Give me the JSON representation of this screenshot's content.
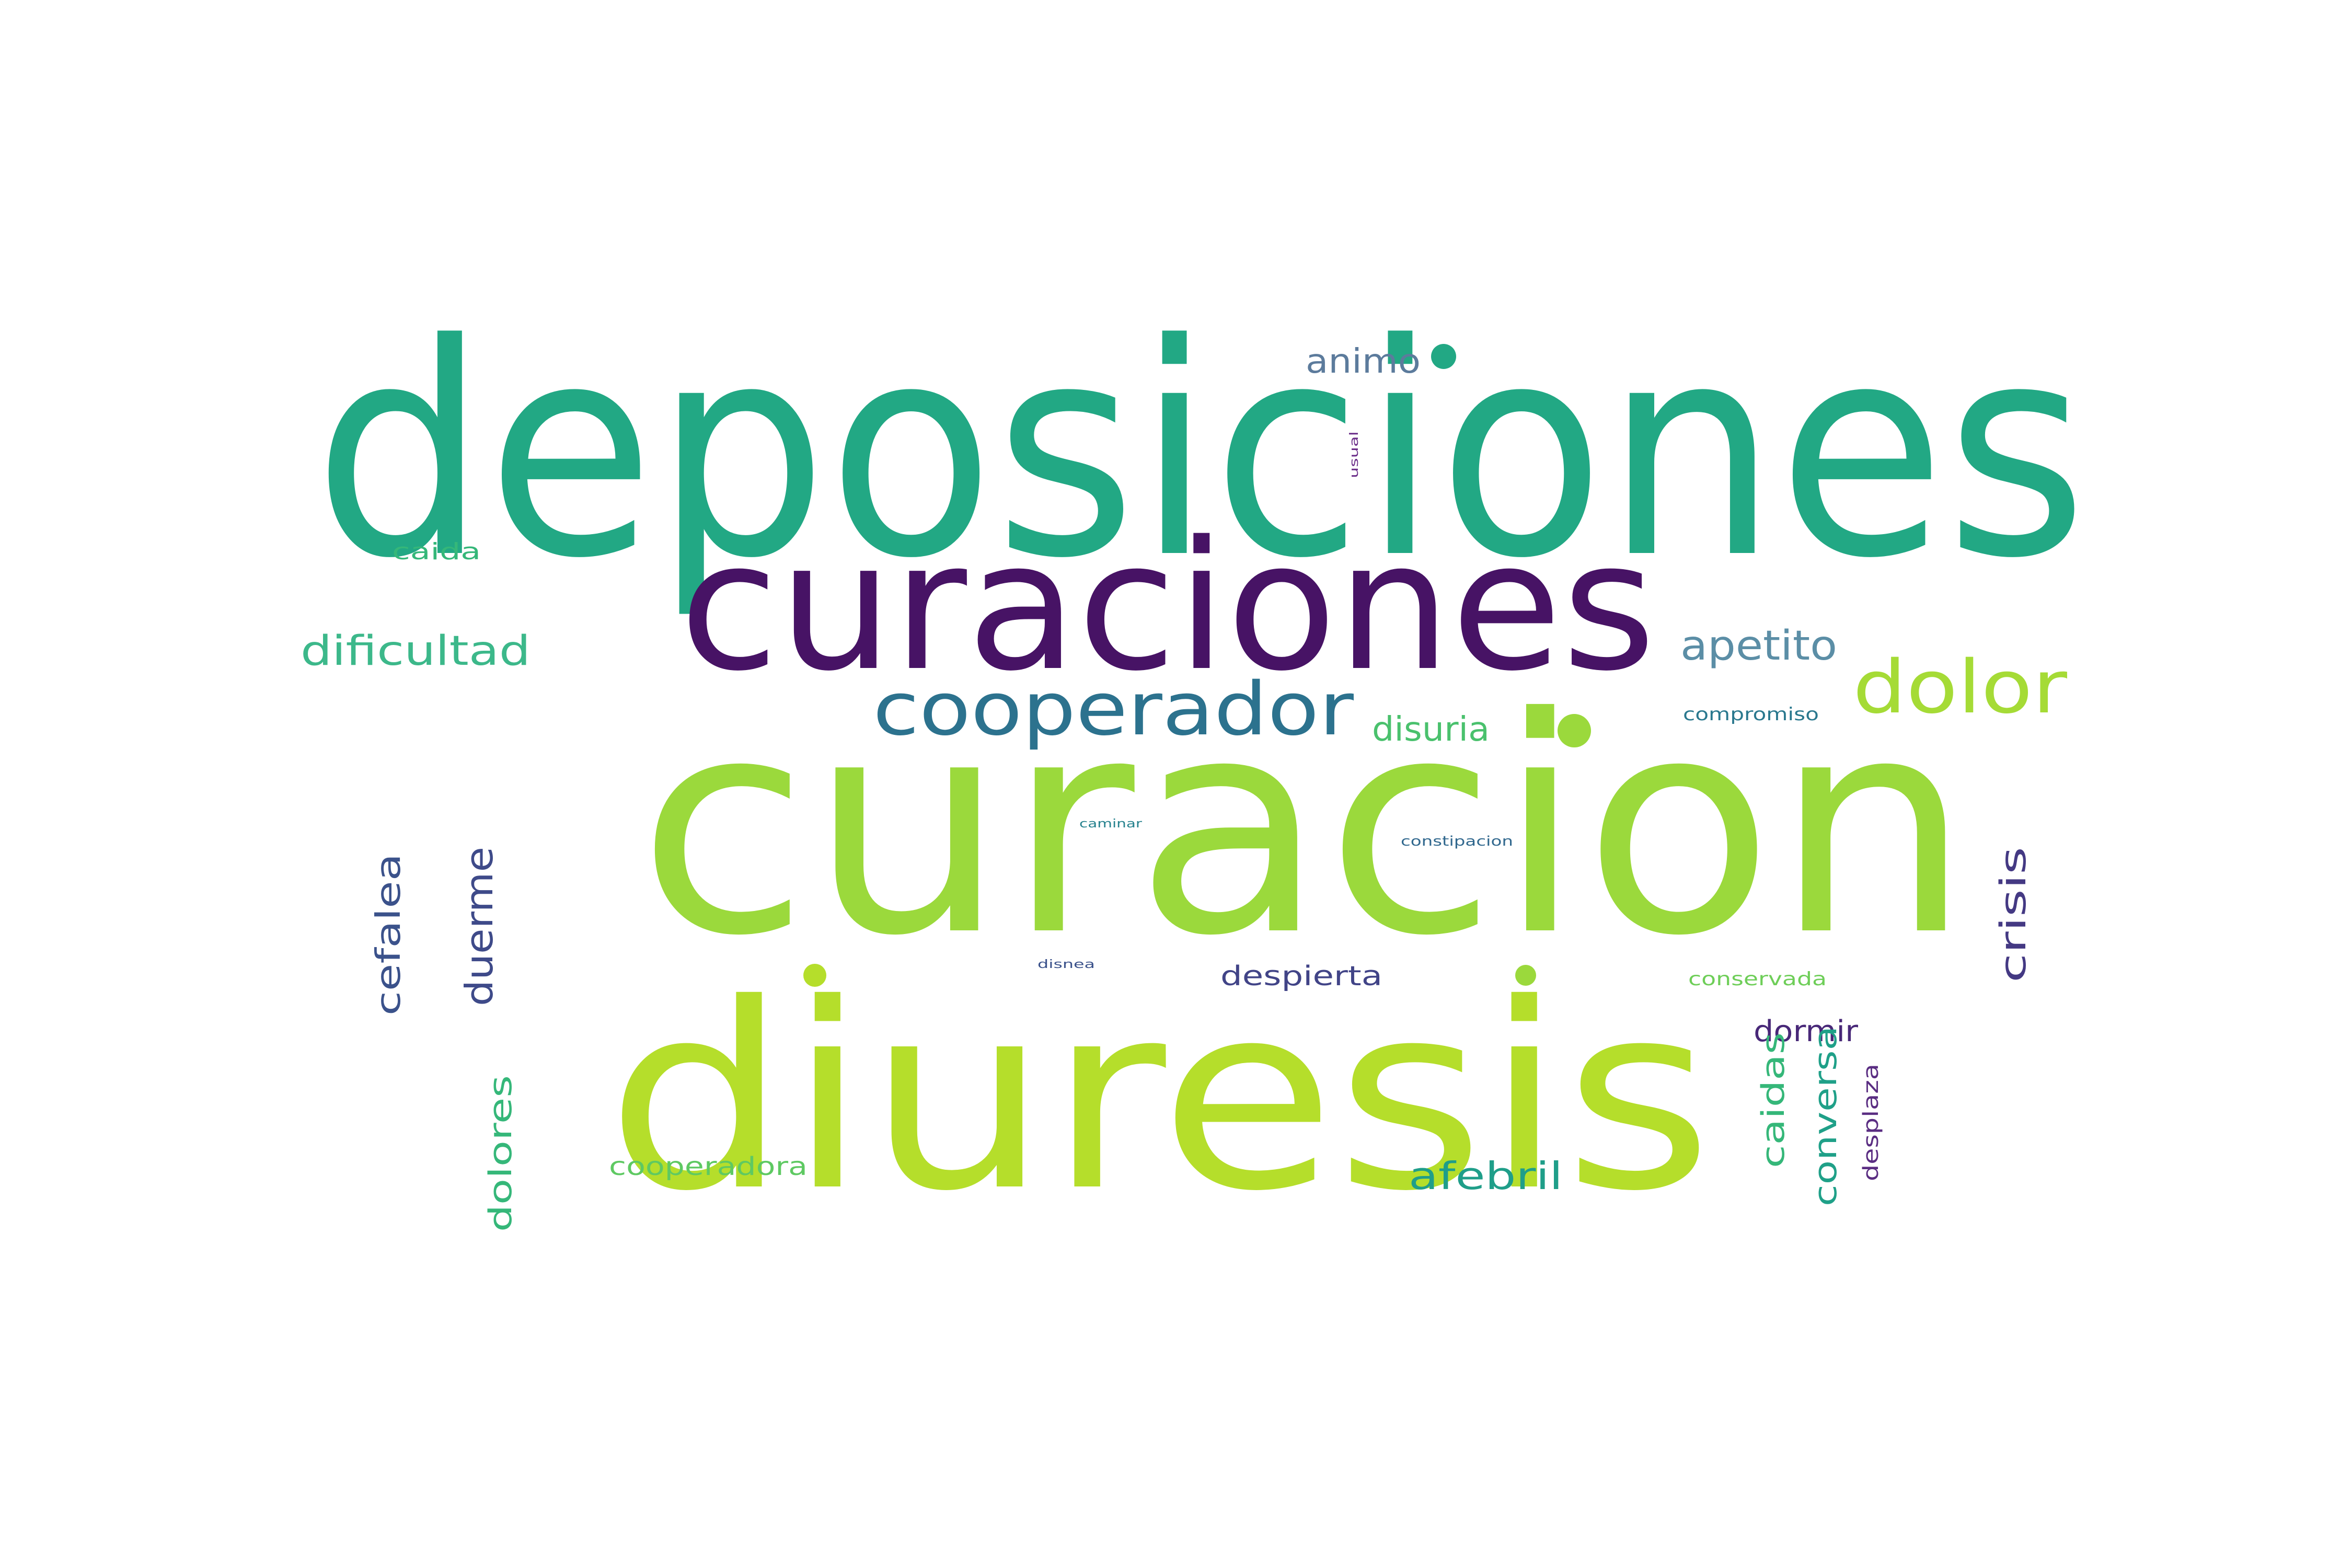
{
  "words": [
    {
      "text": "deposiciones",
      "color": "#22a884"
    },
    {
      "text": "curaciones",
      "color": "#471365"
    },
    {
      "text": "curacion",
      "color": "#9bd93c"
    },
    {
      "text": "diuresis",
      "color": "#b5de2b"
    },
    {
      "text": "cooperador",
      "color": "#2c728e"
    },
    {
      "text": "dolor",
      "color": "#a5db36"
    },
    {
      "text": "apetito",
      "color": "#5b8ea6"
    },
    {
      "text": "dificultad",
      "color": "#3cb88a"
    },
    {
      "text": "animo",
      "color": "#5c7b9c"
    },
    {
      "text": "caida",
      "color": "#35b779"
    },
    {
      "text": "disuria",
      "color": "#4ac16d"
    },
    {
      "text": "compromiso",
      "color": "#2a788e"
    },
    {
      "text": "cefalea",
      "color": "#3b528b"
    },
    {
      "text": "duerme",
      "color": "#3e4a89"
    },
    {
      "text": "crisis",
      "color": "#443983"
    },
    {
      "text": "despierta",
      "color": "#414487"
    },
    {
      "text": "dormir",
      "color": "#482878"
    },
    {
      "text": "conversa",
      "color": "#1fa088"
    },
    {
      "text": "caidas",
      "color": "#35b779"
    },
    {
      "text": "desplaza",
      "color": "#5a2d82"
    },
    {
      "text": "dolores",
      "color": "#35b779"
    },
    {
      "text": "cooperadora",
      "color": "#5ec962"
    },
    {
      "text": "afebril",
      "color": "#1f9e89"
    },
    {
      "text": "conservada",
      "color": "#6ece58"
    },
    {
      "text": "constipacion",
      "color": "#31688e"
    },
    {
      "text": "caminar",
      "color": "#26828e"
    },
    {
      "text": "disnea",
      "color": "#3b528b"
    },
    {
      "text": "usual",
      "color": "#6a2c88"
    }
  ],
  "dots": [
    {
      "color": "#22a884"
    },
    {
      "color": "#9bd93c"
    },
    {
      "color": "#b5de2b"
    },
    {
      "color": "#9bd93c"
    }
  ]
}
